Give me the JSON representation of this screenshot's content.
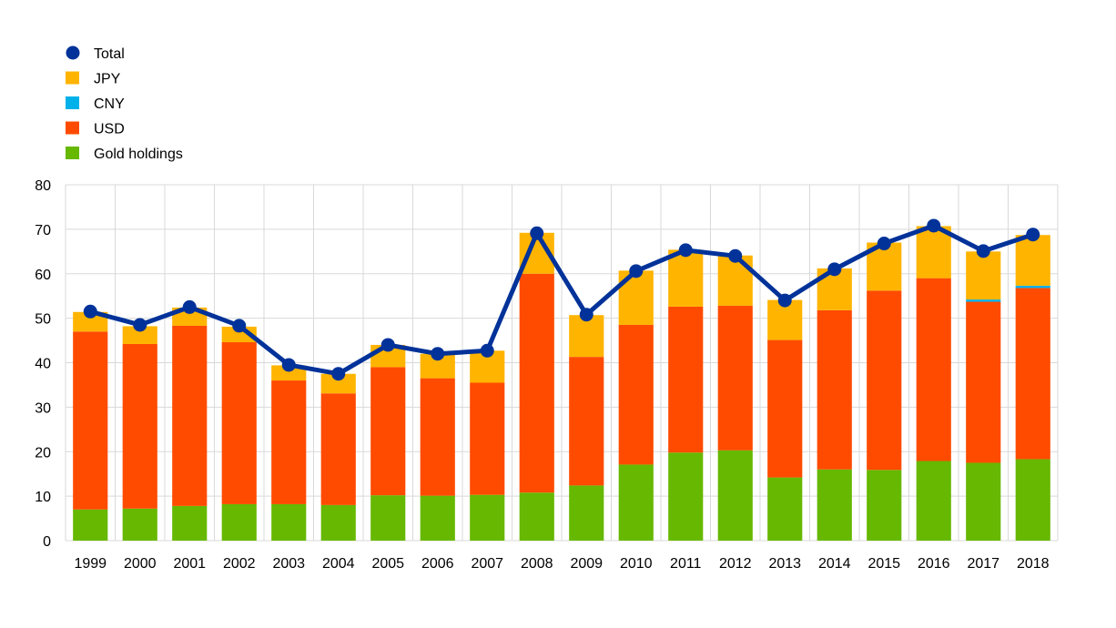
{
  "chart_data": {
    "type": "bar",
    "stacked": true,
    "categories": [
      "1999",
      "2000",
      "2001",
      "2002",
      "2003",
      "2004",
      "2005",
      "2006",
      "2007",
      "2008",
      "2009",
      "2010",
      "2011",
      "2012",
      "2013",
      "2014",
      "2015",
      "2016",
      "2017",
      "2018"
    ],
    "series": [
      {
        "name": "Gold holdings",
        "color": "#66b800",
        "values": [
          7,
          7.2,
          7.8,
          8.2,
          8.2,
          8,
          10.2,
          10.1,
          10.3,
          10.8,
          12.4,
          17.1,
          19.8,
          20.3,
          14.2,
          16,
          15.9,
          17.9,
          17.5,
          18.3
        ]
      },
      {
        "name": "USD",
        "color": "#ff4b00",
        "values": [
          40,
          37,
          40.5,
          36.4,
          27.8,
          25.1,
          28.8,
          26.4,
          25.2,
          49.2,
          28.9,
          31.4,
          32.8,
          32.5,
          30.9,
          35.8,
          40.3,
          41.1,
          36.2,
          38.5
        ]
      },
      {
        "name": "CNY",
        "color": "#00b1ea",
        "values": [
          0,
          0,
          0,
          0,
          0,
          0,
          0,
          0,
          0,
          0,
          0,
          0,
          0,
          0,
          0,
          0,
          0,
          0,
          0.5,
          0.5
        ]
      },
      {
        "name": "JPY",
        "color": "#ffb400",
        "values": [
          4.4,
          4,
          4.1,
          3.5,
          3.4,
          4.4,
          5,
          5.5,
          7.2,
          9.2,
          9.4,
          12.2,
          12.8,
          11.3,
          9,
          9.4,
          10.8,
          11.7,
          10.8,
          11.4
        ]
      }
    ],
    "line": {
      "name": "Total",
      "color": "#003299",
      "values": [
        51.5,
        48.5,
        52.5,
        48.3,
        39.5,
        37.5,
        44,
        42,
        42.7,
        69.1,
        50.8,
        60.6,
        65.3,
        64,
        54,
        61,
        66.8,
        70.8,
        65.1,
        68.8
      ]
    },
    "legend": {
      "position": "top-left",
      "order": [
        "Total",
        "JPY",
        "CNY",
        "USD",
        "Gold holdings"
      ]
    },
    "ylim": [
      0,
      80
    ],
    "yticks": [
      0,
      10,
      20,
      30,
      40,
      50,
      60,
      70,
      80
    ],
    "grid": true,
    "title": "",
    "xlabel": "",
    "ylabel": ""
  }
}
